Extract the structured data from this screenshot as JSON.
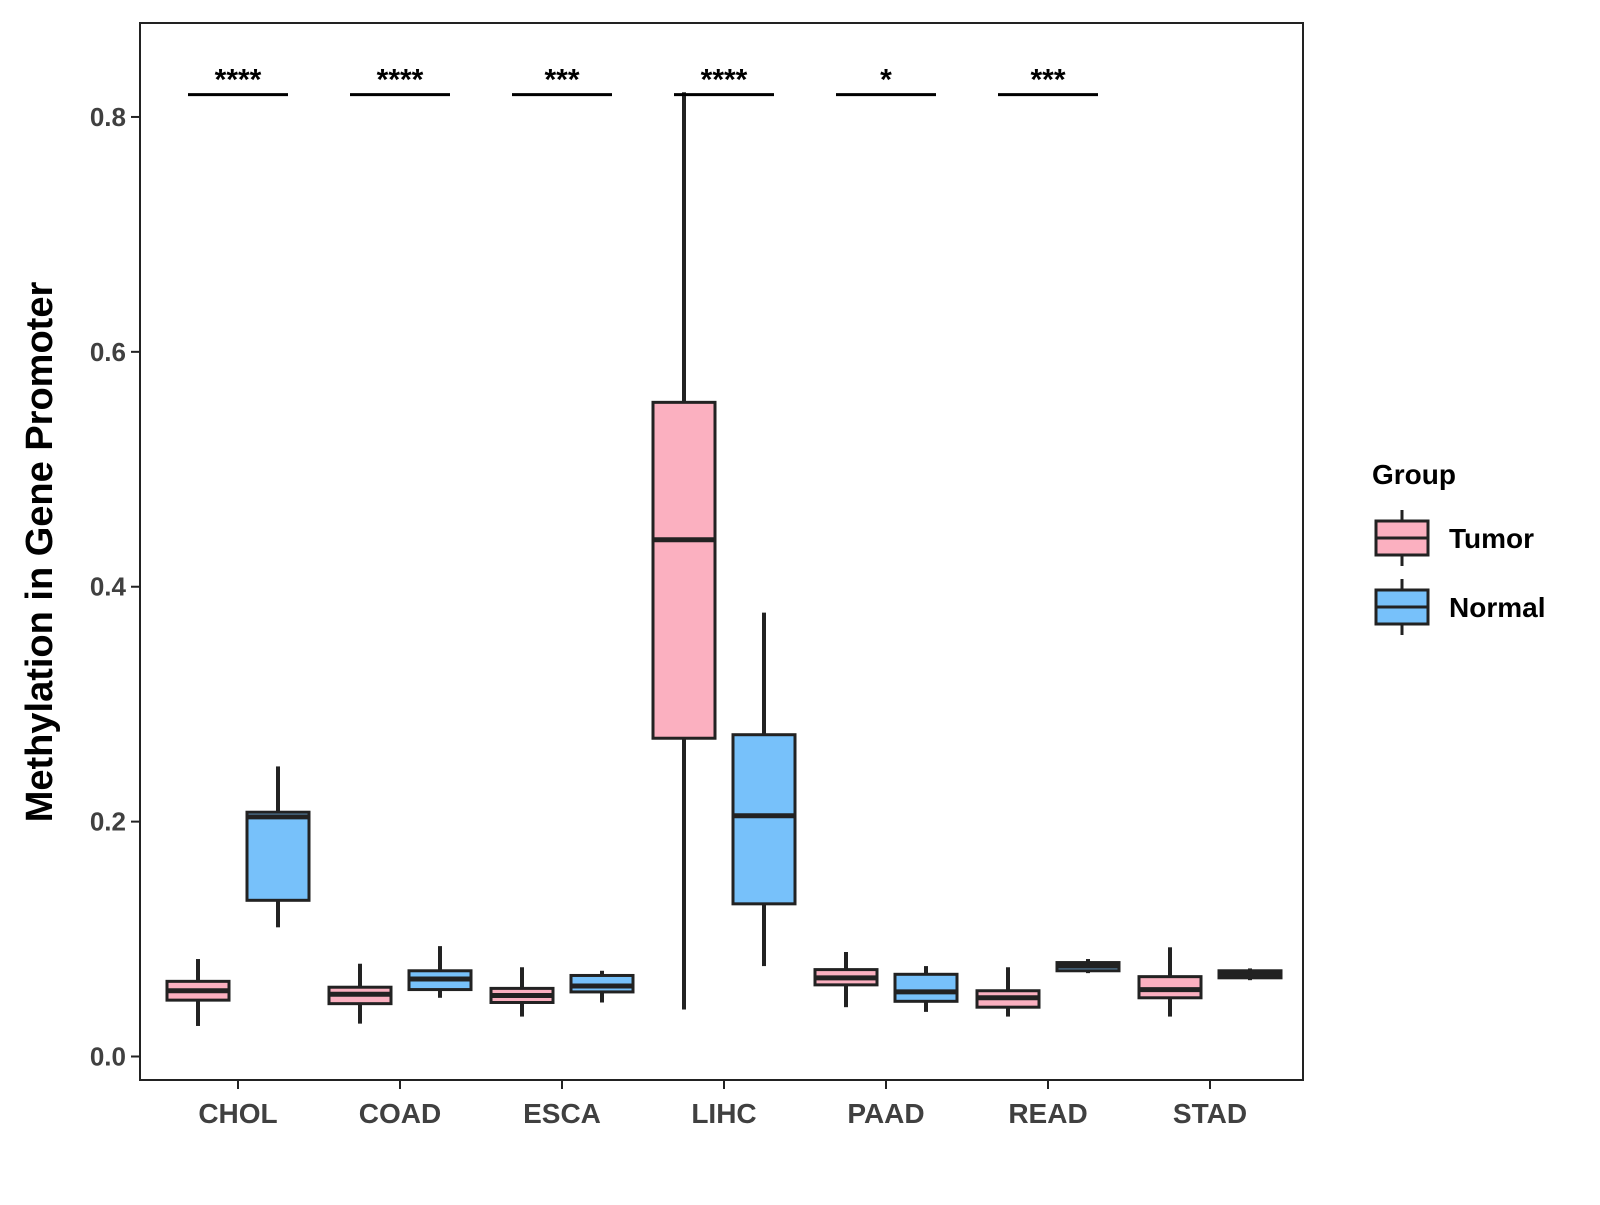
{
  "chart_data": {
    "type": "boxplot",
    "title": "",
    "xlabel": "",
    "ylabel": "Methylation in Gene Promoter",
    "ylim": [
      -0.02,
      0.88
    ],
    "yticks": [
      0.0,
      0.2,
      0.4,
      0.6,
      0.8
    ],
    "ytick_labels": [
      "0.0",
      "0.2",
      "0.4",
      "0.6",
      "0.8"
    ],
    "categories": [
      "CHOL",
      "COAD",
      "ESCA",
      "LIHC",
      "PAAD",
      "READ",
      "STAD"
    ],
    "legend": {
      "title": "Group",
      "position": "right",
      "entries": [
        "Tumor",
        "Normal"
      ]
    },
    "colors": {
      "Tumor": "#fbb0c0",
      "Normal": "#77c1fa",
      "stroke": "#222222",
      "significance": "#000000"
    },
    "series": [
      {
        "name": "Tumor",
        "boxes": [
          {
            "category": "CHOL",
            "min": 0.026,
            "q1": 0.048,
            "median": 0.056,
            "q3": 0.064,
            "max": 0.083
          },
          {
            "category": "COAD",
            "min": 0.028,
            "q1": 0.045,
            "median": 0.053,
            "q3": 0.059,
            "max": 0.079
          },
          {
            "category": "ESCA",
            "min": 0.034,
            "q1": 0.046,
            "median": 0.052,
            "q3": 0.058,
            "max": 0.076
          },
          {
            "category": "LIHC",
            "min": 0.04,
            "q1": 0.271,
            "median": 0.44,
            "q3": 0.557,
            "max": 0.821
          },
          {
            "category": "PAAD",
            "min": 0.042,
            "q1": 0.061,
            "median": 0.067,
            "q3": 0.074,
            "max": 0.089
          },
          {
            "category": "READ",
            "min": 0.034,
            "q1": 0.042,
            "median": 0.05,
            "q3": 0.056,
            "max": 0.076
          },
          {
            "category": "STAD",
            "min": 0.034,
            "q1": 0.05,
            "median": 0.057,
            "q3": 0.068,
            "max": 0.093
          }
        ]
      },
      {
        "name": "Normal",
        "boxes": [
          {
            "category": "CHOL",
            "min": 0.11,
            "q1": 0.133,
            "median": 0.204,
            "q3": 0.208,
            "max": 0.247
          },
          {
            "category": "COAD",
            "min": 0.05,
            "q1": 0.057,
            "median": 0.066,
            "q3": 0.073,
            "max": 0.094
          },
          {
            "category": "ESCA",
            "min": 0.046,
            "q1": 0.055,
            "median": 0.06,
            "q3": 0.069,
            "max": 0.073
          },
          {
            "category": "LIHC",
            "min": 0.077,
            "q1": 0.13,
            "median": 0.205,
            "q3": 0.274,
            "max": 0.378
          },
          {
            "category": "PAAD",
            "min": 0.038,
            "q1": 0.047,
            "median": 0.055,
            "q3": 0.07,
            "max": 0.077
          },
          {
            "category": "READ",
            "min": 0.071,
            "q1": 0.073,
            "median": 0.077,
            "q3": 0.08,
            "max": 0.083
          },
          {
            "category": "STAD",
            "min": 0.065,
            "q1": 0.067,
            "median": 0.07,
            "q3": 0.073,
            "max": 0.075
          }
        ]
      }
    ],
    "significance": [
      {
        "category": "CHOL",
        "label": "****"
      },
      {
        "category": "COAD",
        "label": "****"
      },
      {
        "category": "ESCA",
        "label": "***"
      },
      {
        "category": "LIHC",
        "label": "****"
      },
      {
        "category": "PAAD",
        "label": "*"
      },
      {
        "category": "READ",
        "label": "***"
      }
    ]
  }
}
